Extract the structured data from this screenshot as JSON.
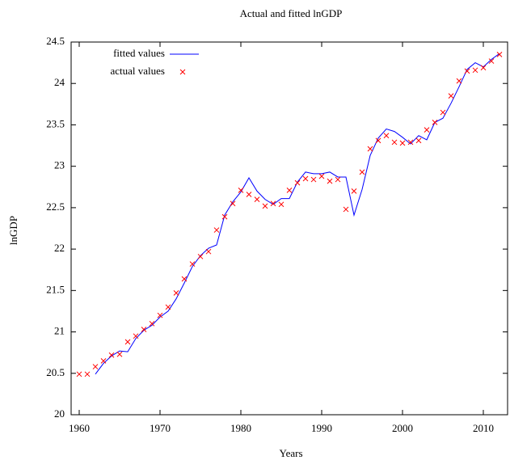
{
  "chart_data": {
    "type": "line",
    "title": "Actual and fitted lnGDP",
    "x_label": "Years",
    "y_label": "lnGDP",
    "x": [
      1960,
      1961,
      1962,
      1963,
      1964,
      1965,
      1966,
      1967,
      1968,
      1969,
      1970,
      1971,
      1972,
      1973,
      1974,
      1975,
      1976,
      1977,
      1978,
      1979,
      1980,
      1981,
      1982,
      1983,
      1984,
      1985,
      1986,
      1987,
      1988,
      1989,
      1990,
      1991,
      1992,
      1993,
      1994,
      1995,
      1996,
      1997,
      1998,
      1999,
      2000,
      2001,
      2002,
      2003,
      2004,
      2005,
      2006,
      2007,
      2008,
      2009,
      2010,
      2011,
      2012
    ],
    "series": [
      {
        "name": "fitted values",
        "color": "#0000ff",
        "style": "line",
        "values": [
          null,
          null,
          20.49,
          20.62,
          20.71,
          20.77,
          20.76,
          20.92,
          21.02,
          21.08,
          21.18,
          21.25,
          21.4,
          21.59,
          21.79,
          21.92,
          22.01,
          22.05,
          22.41,
          22.57,
          22.69,
          22.86,
          22.7,
          22.6,
          22.54,
          22.61,
          22.61,
          22.81,
          22.93,
          22.91,
          22.91,
          22.93,
          22.87,
          22.87,
          22.41,
          22.72,
          23.13,
          23.34,
          23.45,
          23.42,
          23.35,
          23.27,
          23.37,
          23.32,
          23.53,
          23.58,
          23.76,
          23.96,
          24.17,
          24.25,
          24.2,
          24.29,
          24.36
        ]
      },
      {
        "name": "actual values",
        "color": "#ff0000",
        "style": "points",
        "values": [
          20.49,
          20.49,
          20.58,
          20.65,
          20.72,
          20.73,
          20.88,
          20.95,
          21.03,
          21.1,
          21.2,
          21.3,
          21.47,
          21.64,
          21.82,
          21.91,
          21.97,
          22.23,
          22.39,
          22.55,
          22.71,
          22.66,
          22.6,
          22.52,
          22.55,
          22.54,
          22.71,
          22.8,
          22.85,
          22.84,
          22.88,
          22.82,
          22.84,
          22.48,
          22.7,
          22.93,
          23.21,
          23.31,
          23.37,
          23.29,
          23.28,
          23.29,
          23.31,
          23.44,
          23.53,
          23.65,
          23.85,
          24.03,
          24.15,
          24.16,
          24.19,
          24.27,
          24.35
        ]
      }
    ],
    "xlim": [
      1959,
      2013
    ],
    "xticks": [
      1960,
      1970,
      1980,
      1990,
      2000,
      2010
    ],
    "ylim": [
      20,
      24.5
    ],
    "yticks": [
      20,
      20.5,
      21,
      21.5,
      22,
      22.5,
      23,
      23.5,
      24,
      24.5
    ],
    "legend": "top-left"
  }
}
